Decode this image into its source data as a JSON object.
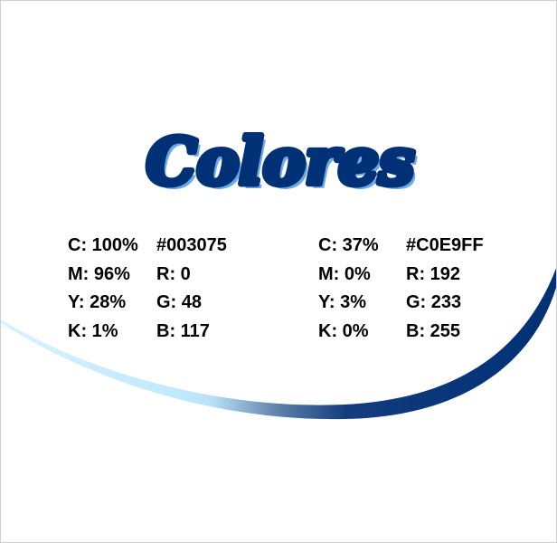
{
  "title": "Colores",
  "colors": {
    "primary": "#003075",
    "secondary": "#C0E9FF"
  },
  "swatches": [
    {
      "cmyk": [
        "C: 100%",
        "M: 96%",
        "Y: 28%",
        "K: 1%"
      ],
      "hex_rgb": [
        "#003075",
        "R: 0",
        "G: 48",
        "B: 117"
      ]
    },
    {
      "cmyk": [
        "C: 37%",
        "M: 0%",
        "Y: 3%",
        "K: 0%"
      ],
      "hex_rgb": [
        "#C0E9FF",
        "R: 192",
        "G: 233",
        "B: 255"
      ]
    }
  ]
}
